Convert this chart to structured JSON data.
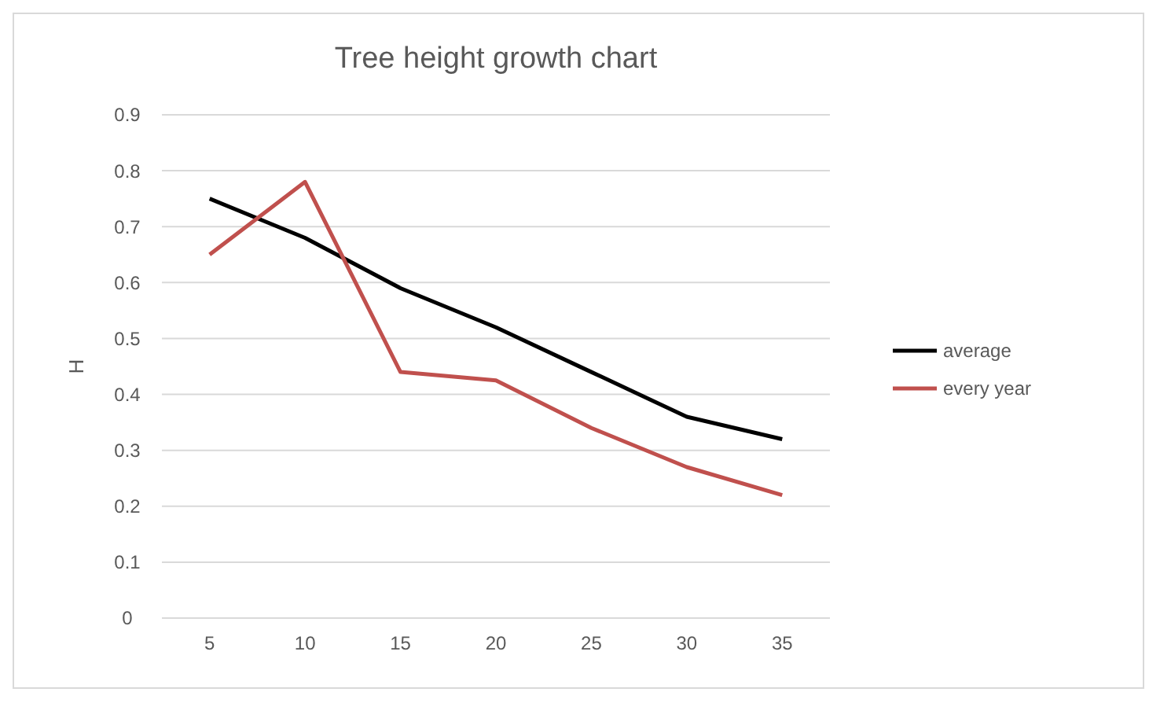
{
  "chart_data": {
    "type": "line",
    "title": "Tree height growth chart",
    "ylabel": "H",
    "categories": [
      "5",
      "10",
      "15",
      "20",
      "25",
      "30",
      "35"
    ],
    "series": [
      {
        "name": "average",
        "color": "#000000",
        "values": [
          0.75,
          0.68,
          0.59,
          0.52,
          0.44,
          0.36,
          0.32
        ]
      },
      {
        "name": "every year",
        "color": "#c0504d",
        "values": [
          0.65,
          0.78,
          0.44,
          0.425,
          0.34,
          0.27,
          0.22
        ]
      }
    ],
    "ylim": [
      0,
      0.9
    ],
    "yticks": [
      0,
      0.1,
      0.2,
      0.3,
      0.4,
      0.5,
      0.6,
      0.7,
      0.8,
      0.9
    ],
    "grid": "y",
    "legend": "right"
  }
}
